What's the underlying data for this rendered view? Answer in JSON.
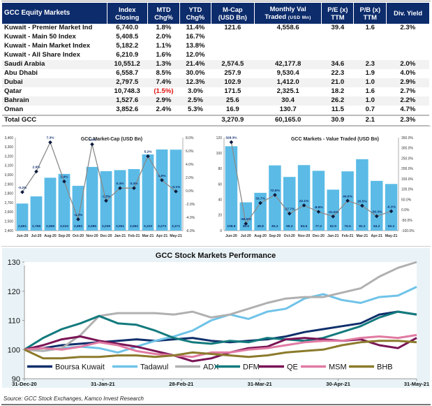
{
  "table": {
    "headers": [
      {
        "line1": "GCC Equity Markets",
        "line2": ""
      },
      {
        "line1": "Index",
        "line2": "Closing"
      },
      {
        "line1": "MTD",
        "line2": "Chg%"
      },
      {
        "line1": "YTD",
        "line2": "Chg%"
      },
      {
        "line1": "M-Cap",
        "line2": "(USD Bn)"
      },
      {
        "line1": "Monthly Val",
        "line2": "Traded",
        "line2_small": "(USD Mn)"
      },
      {
        "line1": "P/E (x)",
        "line2": "TTM"
      },
      {
        "line1": "P/B (x)",
        "line2": "TTM"
      },
      {
        "line1": "Div. Yield",
        "line2": ""
      }
    ],
    "rows": [
      {
        "name": "Kuwait - Premier Market Ind",
        "close": "6,740.0",
        "mtd": "1.8%",
        "ytd": "11.4%",
        "mcap": "121.6",
        "val": "4,558.6",
        "pe": "39.4",
        "pb": "1.6",
        "dy": "2.3%"
      },
      {
        "name": "Kuwait - Main 50 Index",
        "close": "5,408.5",
        "mtd": "2.0%",
        "ytd": "16.7%",
        "mcap": "",
        "val": "",
        "pe": "",
        "pb": "",
        "dy": ""
      },
      {
        "name": "Kuwait - Main Market Index",
        "close": "5,182.2",
        "mtd": "1.1%",
        "ytd": "13.8%",
        "mcap": "",
        "val": "",
        "pe": "",
        "pb": "",
        "dy": ""
      },
      {
        "name": "Kuwait - All Share Index",
        "close": "6,210.9",
        "mtd": "1.6%",
        "ytd": "12.0%",
        "mcap": "",
        "val": "",
        "pe": "",
        "pb": "",
        "dy": ""
      },
      {
        "name": "Saudi Arabia",
        "close": "10,551.2",
        "mtd": "1.3%",
        "ytd": "21.4%",
        "mcap": "2,574.5",
        "val": "42,177.8",
        "pe": "34.6",
        "pb": "2.3",
        "dy": "2.0%"
      },
      {
        "name": "Abu Dhabi",
        "close": "6,558.7",
        "mtd": "8.5%",
        "ytd": "30.0%",
        "mcap": "257.9",
        "val": "9,530.4",
        "pe": "22.3",
        "pb": "1.9",
        "dy": "4.0%"
      },
      {
        "name": "Dubai",
        "close": "2,797.5",
        "mtd": "7.4%",
        "ytd": "12.3%",
        "mcap": "102.9",
        "val": "1,412.0",
        "pe": "21.0",
        "pb": "1.0",
        "dy": "2.9%"
      },
      {
        "name": "Qatar",
        "close": "10,748.3",
        "mtd": "(1.5%)",
        "ytd": "3.0%",
        "mcap": "171.5",
        "val": "2,325.1",
        "pe": "18.2",
        "pb": "1.6",
        "dy": "2.7%"
      },
      {
        "name": "Bahrain",
        "close": "1,527.6",
        "mtd": "2.9%",
        "ytd": "2.5%",
        "mcap": "25.6",
        "val": "30.4",
        "pe": "26.2",
        "pb": "1.0",
        "dy": "2.2%"
      },
      {
        "name": "Oman",
        "close": "3,852.6",
        "mtd": "2.4%",
        "ytd": "5.3%",
        "mcap": "16.9",
        "val": "130.7",
        "pe": "11.5",
        "pb": "0.7",
        "dy": "4.7%"
      }
    ],
    "total": {
      "name": "Total GCC",
      "close": "",
      "mtd": "",
      "ytd": "",
      "mcap": "3,270.9",
      "val": "60,165.0",
      "pe": "30.9",
      "pb": "2.1",
      "dy": "2.3%"
    },
    "negative_color": "#e01010",
    "header_color": "#0d2c6c"
  },
  "source": "Source: GCC Stock Exchanges, Kamco Invest Research",
  "chart_data": [
    {
      "type": "bar",
      "title": "GCC  Market-Cap (USD Bn)",
      "categories": [
        "Jun-20",
        "Jul-20",
        "Aug-20",
        "Sep-20",
        "Oct-20",
        "Nov-20",
        "Dec-20",
        "Jan-21",
        "Feb-21",
        "Mar-21",
        "Apr-21",
        "May-21"
      ],
      "series": [
        {
          "name": "Market Cap (USD Bn)",
          "kind": "bar",
          "axis": "left",
          "values": [
            2691,
            2768,
            2969,
            3010,
            2882,
            3085,
            3039,
            3051,
            3062,
            3220,
            3273,
            3271
          ],
          "labels": [
            "2,691",
            "2,768",
            "2,969",
            "3,010",
            "2,882",
            "3,085",
            "3,039",
            "3,051",
            "3,062",
            "3,220",
            "3,273",
            "3,271"
          ]
        },
        {
          "name": "MoM Chg%",
          "kind": "line",
          "axis": "right",
          "values": [
            -0.2,
            2.9,
            7.3,
            1.4,
            -4.3,
            7.0,
            -1.5,
            0.4,
            0.4,
            5.2,
            1.6,
            -0.1
          ],
          "labels": [
            "-0.2%",
            "2.9%",
            "7.3%",
            "1.4%",
            "-4.3%",
            "7.0%",
            "-1.5%",
            "0.4%",
            "0.4%",
            "5.2%",
            "1.6%",
            "-0.1%"
          ]
        }
      ],
      "ylim": [
        2400,
        3400
      ],
      "yticks": [
        "2,400",
        "2,500",
        "2,600",
        "2,700",
        "2,800",
        "2,900",
        "3,000",
        "3,100",
        "3,200",
        "3,300",
        "3,400"
      ],
      "y2lim": [
        -6.0,
        8.0
      ],
      "y2ticks": [
        "-6.0%",
        "-4.0%",
        "-2.0%",
        "0.0%",
        "2.0%",
        "4.0%",
        "6.0%",
        "8.0%"
      ],
      "bar_color": "#5bbbe6",
      "line_color": "#8a8a8a",
      "marker_color": "#0d1b3e"
    },
    {
      "type": "bar",
      "title": "GCC  Markets - Value Traded (USD Bn)",
      "categories": [
        "Jun-20",
        "Jul-20",
        "Aug-20",
        "Sep-20",
        "Oct-20",
        "Nov-20",
        "Dec-20",
        "Jan-21",
        "Feb-21",
        "Mar-21",
        "Apr-21",
        "May-21"
      ],
      "series": [
        {
          "name": "Value Traded (USD Bn)",
          "kind": "bar",
          "axis": "left",
          "values": [
            108.9,
            36.5,
            48.8,
            84.2,
            69.3,
            84.6,
            77.2,
            52.9,
            76.5,
            92.2,
            64.2,
            60.2
          ],
          "labels": [
            "108.9",
            "36.5",
            "48.8",
            "84.2",
            "69.3",
            "84.6",
            "77.2",
            "52.9",
            "76.5",
            "92.2",
            "64.2",
            "60.2"
          ]
        },
        {
          "name": "MoM Chg%",
          "kind": "line",
          "axis": "right",
          "values": [
            328.3,
            -66.5,
            33.7,
            72.6,
            -17.7,
            22.1,
            -8.8,
            -31.5,
            44.6,
            20.5,
            -30.3,
            -6.3
          ],
          "labels": [
            "328.3%",
            "-66.5%",
            "33.7%",
            "72.6%",
            "-17.7%",
            "22.1%",
            "-8.8%",
            "-31.5%",
            "44.6%",
            "20.5%",
            "-30.3%",
            "-6.3%"
          ]
        }
      ],
      "ylim": [
        0,
        120
      ],
      "yticks": [
        "0",
        "20",
        "40",
        "60",
        "80",
        "100",
        "120"
      ],
      "y2lim": [
        -100,
        350
      ],
      "y2ticks": [
        "-100.0%",
        "-50.0%",
        "0.0%",
        "50.0%",
        "100.0%",
        "150.0%",
        "200.0%",
        "250.0%",
        "300.0%",
        "350.0%"
      ],
      "bar_color": "#5bbbe6",
      "line_color": "#8a8a8a",
      "marker_color": "#0d1b3e"
    },
    {
      "type": "line",
      "title": "GCC Stock Markets Performance",
      "xlabels": [
        "31-Dec-20",
        "31-Jan-21",
        "28-Feb-21",
        "31-Mar-21",
        "30-Apr-21",
        "31-May-21"
      ],
      "ylim": [
        90,
        130
      ],
      "yticks": [
        "90",
        "100",
        "110",
        "120",
        "130"
      ],
      "x_points": 22,
      "series": [
        {
          "name": "Boursa Kuwait",
          "color": "#0f2f6b",
          "values": [
            100,
            100.5,
            101.5,
            102,
            102.5,
            103,
            103.5,
            103,
            103.5,
            104,
            103,
            102.5,
            103,
            103.5,
            104.5,
            106,
            107,
            108,
            109,
            112,
            113,
            112
          ]
        },
        {
          "name": "Tadawul",
          "color": "#6fc3e8",
          "values": [
            100,
            99.5,
            100.5,
            101,
            100.5,
            99,
            101,
            103,
            104.5,
            106.5,
            110,
            112,
            110.5,
            113,
            114,
            117.5,
            119,
            117,
            116,
            118,
            118.5,
            121.5
          ]
        },
        {
          "name": "ADX",
          "color": "#b0b0b0",
          "values": [
            100,
            99.5,
            100.5,
            105,
            111.5,
            112.5,
            112.5,
            112.5,
            112,
            113,
            111,
            112,
            114,
            116,
            117.5,
            118,
            118,
            119.5,
            121,
            125,
            128,
            130
          ]
        },
        {
          "name": "DFM",
          "color": "#137a7d",
          "values": [
            100,
            104,
            107,
            109,
            111.5,
            109,
            108.5,
            106.5,
            104,
            102.5,
            102,
            103,
            102.5,
            104,
            103.5,
            103,
            104,
            106,
            108,
            111,
            113,
            112
          ]
        },
        {
          "name": "QE",
          "color": "#7a1456",
          "values": [
            100,
            101.5,
            103.5,
            104.5,
            103,
            102,
            101,
            99.5,
            98,
            96,
            97,
            99,
            100.5,
            101,
            103.5,
            104,
            103.5,
            103,
            103.5,
            101.5,
            100.5,
            104
          ]
        },
        {
          "name": "MSM",
          "color": "#e07aa2",
          "values": [
            100,
            100.5,
            100,
            101,
            102.5,
            101.5,
            99.5,
            98.5,
            98,
            97.5,
            99,
            99,
            100,
            100.5,
            101.5,
            102.5,
            103,
            103,
            104,
            104.5,
            104,
            105
          ]
        },
        {
          "name": "BHB",
          "color": "#8b7a2b",
          "values": [
            100,
            97,
            97,
            97.5,
            97.5,
            98,
            98,
            97.5,
            98,
            99,
            98.5,
            98,
            97.5,
            98,
            99,
            99.5,
            100,
            101.5,
            102.5,
            103,
            103,
            102.5
          ]
        }
      ]
    }
  ]
}
